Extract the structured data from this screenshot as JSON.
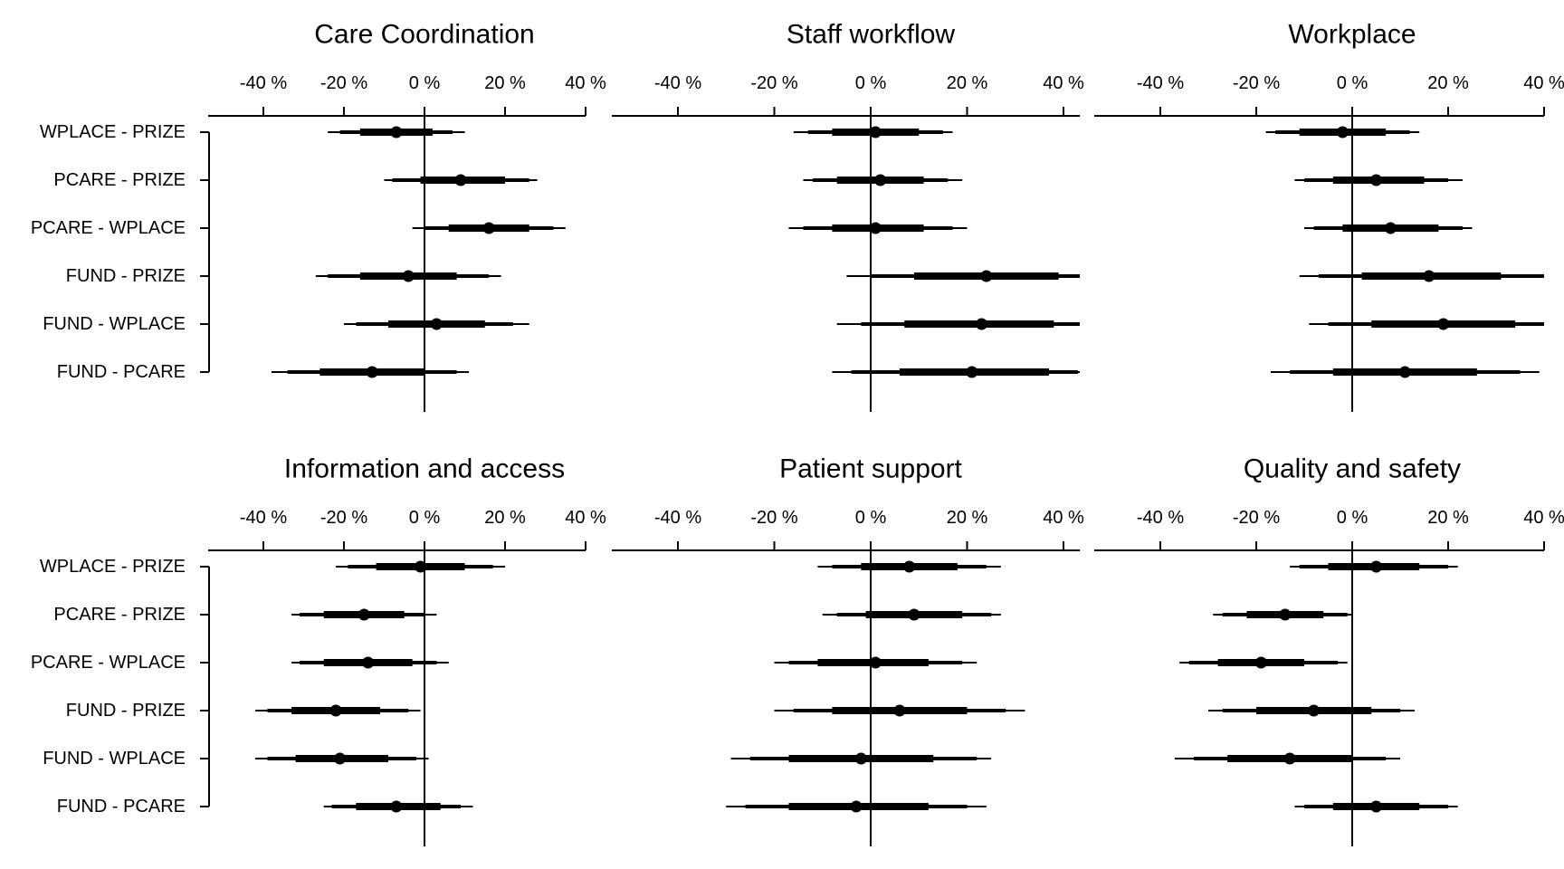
{
  "row_labels": [
    "WPLACE - PRIZE",
    "PCARE - PRIZE",
    "PCARE - WPLACE",
    "FUND - PRIZE",
    "FUND - WPLACE",
    "FUND - PCARE"
  ],
  "chart_data": [
    {
      "type": "forest",
      "title": "Care Coordination",
      "xlim": [
        -40,
        40
      ],
      "ticks": [
        -40,
        -20,
        0,
        20,
        40
      ],
      "tick_labels": [
        "-40 %",
        "-20 %",
        "0 %",
        "20 %",
        "40 %"
      ],
      "categories": [
        "WPLACE - PRIZE",
        "PCARE - PRIZE",
        "PCARE - WPLACE",
        "FUND - PRIZE",
        "FUND - WPLACE",
        "FUND - PCARE"
      ],
      "estimates": [
        {
          "point": -7,
          "inner": [
            -16,
            2
          ],
          "mid": [
            -21,
            7
          ],
          "outer": [
            -24,
            10
          ]
        },
        {
          "point": 9,
          "inner": [
            -1,
            20
          ],
          "mid": [
            -8,
            26
          ],
          "outer": [
            -10,
            28
          ]
        },
        {
          "point": 16,
          "inner": [
            6,
            26
          ],
          "mid": [
            0,
            32
          ],
          "outer": [
            -3,
            35
          ]
        },
        {
          "point": -4,
          "inner": [
            -16,
            8
          ],
          "mid": [
            -24,
            16
          ],
          "outer": [
            -27,
            19
          ]
        },
        {
          "point": 3,
          "inner": [
            -9,
            15
          ],
          "mid": [
            -17,
            22
          ],
          "outer": [
            -20,
            26
          ]
        },
        {
          "point": -13,
          "inner": [
            -26,
            0
          ],
          "mid": [
            -34,
            8
          ],
          "outer": [
            -38,
            11
          ]
        }
      ]
    },
    {
      "type": "forest",
      "title": "Staff workflow",
      "xlim": [
        -40,
        40
      ],
      "ticks": [
        -40,
        -20,
        0,
        20,
        40
      ],
      "tick_labels": [
        "-40 %",
        "-20 %",
        "0 %",
        "20 %",
        "40 %"
      ],
      "categories": [
        "WPLACE - PRIZE",
        "PCARE - PRIZE",
        "PCARE - WPLACE",
        "FUND - PRIZE",
        "FUND - WPLACE",
        "FUND - PCARE"
      ],
      "estimates": [
        {
          "point": 1,
          "inner": [
            -8,
            10
          ],
          "mid": [
            -13,
            15
          ],
          "outer": [
            -16,
            17
          ]
        },
        {
          "point": 2,
          "inner": [
            -7,
            11
          ],
          "mid": [
            -12,
            16
          ],
          "outer": [
            -14,
            19
          ]
        },
        {
          "point": 1,
          "inner": [
            -8,
            11
          ],
          "mid": [
            -14,
            17
          ],
          "outer": [
            -17,
            20
          ]
        },
        {
          "point": 24,
          "inner": [
            9,
            39
          ],
          "mid": [
            0,
            44
          ],
          "outer": [
            -5,
            48
          ]
        },
        {
          "point": 23,
          "inner": [
            7,
            38
          ],
          "mid": [
            -2,
            44
          ],
          "outer": [
            -7,
            48
          ]
        },
        {
          "point": 21,
          "inner": [
            6,
            37
          ],
          "mid": [
            -4,
            43
          ],
          "outer": [
            -8,
            46
          ]
        }
      ]
    },
    {
      "type": "forest",
      "title": "Workplace",
      "xlim": [
        -40,
        40
      ],
      "ticks": [
        -40,
        -20,
        0,
        20,
        40
      ],
      "tick_labels": [
        "-40 %",
        "-20 %",
        "0 %",
        "20 %",
        "40 %"
      ],
      "categories": [
        "WPLACE - PRIZE",
        "PCARE - PRIZE",
        "PCARE - WPLACE",
        "FUND - PRIZE",
        "FUND - WPLACE",
        "FUND - PCARE"
      ],
      "estimates": [
        {
          "point": -2,
          "inner": [
            -11,
            7
          ],
          "mid": [
            -16,
            12
          ],
          "outer": [
            -18,
            14
          ]
        },
        {
          "point": 5,
          "inner": [
            -4,
            15
          ],
          "mid": [
            -10,
            20
          ],
          "outer": [
            -12,
            23
          ]
        },
        {
          "point": 8,
          "inner": [
            -2,
            18
          ],
          "mid": [
            -8,
            23
          ],
          "outer": [
            -10,
            25
          ]
        },
        {
          "point": 16,
          "inner": [
            2,
            31
          ],
          "mid": [
            -7,
            40
          ],
          "outer": [
            -11,
            44
          ]
        },
        {
          "point": 19,
          "inner": [
            4,
            34
          ],
          "mid": [
            -5,
            42
          ],
          "outer": [
            -9,
            46
          ]
        },
        {
          "point": 11,
          "inner": [
            -4,
            26
          ],
          "mid": [
            -13,
            35
          ],
          "outer": [
            -17,
            39
          ]
        }
      ]
    },
    {
      "type": "forest",
      "title": "Information and access",
      "xlim": [
        -40,
        40
      ],
      "ticks": [
        -40,
        -20,
        0,
        20,
        40
      ],
      "tick_labels": [
        "-40 %",
        "-20 %",
        "0 %",
        "20 %",
        "40 %"
      ],
      "categories": [
        "WPLACE - PRIZE",
        "PCARE - PRIZE",
        "PCARE - WPLACE",
        "FUND - PRIZE",
        "FUND - WPLACE",
        "FUND - PCARE"
      ],
      "estimates": [
        {
          "point": -1,
          "inner": [
            -12,
            10
          ],
          "mid": [
            -19,
            17
          ],
          "outer": [
            -22,
            20
          ]
        },
        {
          "point": -15,
          "inner": [
            -25,
            -5
          ],
          "mid": [
            -31,
            0
          ],
          "outer": [
            -33,
            3
          ]
        },
        {
          "point": -14,
          "inner": [
            -25,
            -3
          ],
          "mid": [
            -31,
            3
          ],
          "outer": [
            -33,
            6
          ]
        },
        {
          "point": -22,
          "inner": [
            -33,
            -11
          ],
          "mid": [
            -39,
            -4
          ],
          "outer": [
            -42,
            -1
          ]
        },
        {
          "point": -21,
          "inner": [
            -32,
            -9
          ],
          "mid": [
            -39,
            -2
          ],
          "outer": [
            -42,
            1
          ]
        },
        {
          "point": -7,
          "inner": [
            -17,
            4
          ],
          "mid": [
            -23,
            9
          ],
          "outer": [
            -25,
            12
          ]
        }
      ]
    },
    {
      "type": "forest",
      "title": "Patient support",
      "xlim": [
        -40,
        40
      ],
      "ticks": [
        -40,
        -20,
        0,
        20,
        40
      ],
      "tick_labels": [
        "-40 %",
        "-20 %",
        "0 %",
        "20 %",
        "40 %"
      ],
      "categories": [
        "WPLACE - PRIZE",
        "PCARE - PRIZE",
        "PCARE - WPLACE",
        "FUND - PRIZE",
        "FUND - WPLACE",
        "FUND - PCARE"
      ],
      "estimates": [
        {
          "point": 8,
          "inner": [
            -2,
            18
          ],
          "mid": [
            -8,
            24
          ],
          "outer": [
            -11,
            27
          ]
        },
        {
          "point": 9,
          "inner": [
            -1,
            19
          ],
          "mid": [
            -7,
            25
          ],
          "outer": [
            -10,
            27
          ]
        },
        {
          "point": 1,
          "inner": [
            -11,
            12
          ],
          "mid": [
            -17,
            19
          ],
          "outer": [
            -20,
            22
          ]
        },
        {
          "point": 6,
          "inner": [
            -8,
            20
          ],
          "mid": [
            -16,
            28
          ],
          "outer": [
            -20,
            32
          ]
        },
        {
          "point": -2,
          "inner": [
            -17,
            13
          ],
          "mid": [
            -25,
            22
          ],
          "outer": [
            -29,
            25
          ]
        },
        {
          "point": -3,
          "inner": [
            -17,
            12
          ],
          "mid": [
            -26,
            20
          ],
          "outer": [
            -30,
            24
          ]
        }
      ]
    },
    {
      "type": "forest",
      "title": "Quality and safety",
      "xlim": [
        -40,
        40
      ],
      "ticks": [
        -40,
        -20,
        0,
        20,
        40
      ],
      "tick_labels": [
        "-40 %",
        "-20 %",
        "0 %",
        "20 %",
        "40 %"
      ],
      "categories": [
        "WPLACE - PRIZE",
        "PCARE - PRIZE",
        "PCARE - WPLACE",
        "FUND - PRIZE",
        "FUND - WPLACE",
        "FUND - PCARE"
      ],
      "estimates": [
        {
          "point": 5,
          "inner": [
            -5,
            14
          ],
          "mid": [
            -11,
            20
          ],
          "outer": [
            -13,
            22
          ]
        },
        {
          "point": -14,
          "inner": [
            -22,
            -6
          ],
          "mid": [
            -27,
            -1
          ],
          "outer": [
            -29,
            0
          ]
        },
        {
          "point": -19,
          "inner": [
            -28,
            -10
          ],
          "mid": [
            -34,
            -3
          ],
          "outer": [
            -36,
            -1
          ]
        },
        {
          "point": -8,
          "inner": [
            -20,
            4
          ],
          "mid": [
            -27,
            10
          ],
          "outer": [
            -30,
            13
          ]
        },
        {
          "point": -13,
          "inner": [
            -26,
            0
          ],
          "mid": [
            -33,
            7
          ],
          "outer": [
            -37,
            10
          ]
        },
        {
          "point": 5,
          "inner": [
            -4,
            14
          ],
          "mid": [
            -10,
            20
          ],
          "outer": [
            -12,
            22
          ]
        }
      ]
    }
  ]
}
